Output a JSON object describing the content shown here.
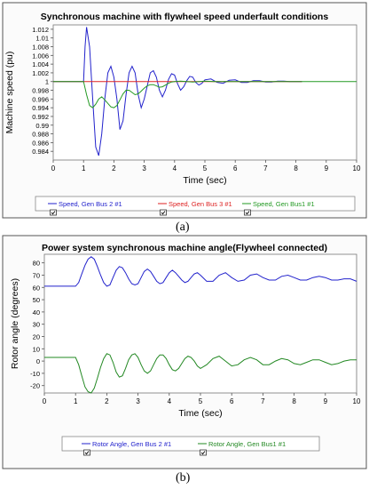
{
  "figure_labels": [
    "(a)",
    "(b)"
  ],
  "chart_data": [
    {
      "type": "line",
      "title": "Synchronous machine with flywheel speed underfault conditions",
      "xlabel": "Time (sec)",
      "ylabel": "Machine speed (pu)",
      "xlim": [
        0,
        10
      ],
      "ylim": [
        0.982,
        1.013
      ],
      "xticks": [
        0,
        1,
        2,
        3,
        4,
        5,
        6,
        7,
        8,
        9,
        10
      ],
      "yticks": [
        1.012,
        1.01,
        1.008,
        1.006,
        1.004,
        1.002,
        1,
        0.998,
        0.996,
        0.994,
        0.992,
        0.99,
        0.988,
        0.986,
        0.984
      ],
      "grid": false,
      "legend_placement": "bottom",
      "series": [
        {
          "name": "Speed, Gen Bus 2 #1",
          "color": "#2222cc",
          "x": [
            0,
            1.0,
            1.05,
            1.1,
            1.2,
            1.3,
            1.4,
            1.5,
            1.6,
            1.7,
            1.8,
            1.9,
            2.0,
            2.1,
            2.2,
            2.3,
            2.4,
            2.5,
            2.6,
            2.7,
            2.8,
            2.9,
            3.0,
            3.1,
            3.2,
            3.3,
            3.4,
            3.5,
            3.6,
            3.7,
            3.8,
            3.9,
            4.0,
            4.1,
            4.2,
            4.3,
            4.4,
            4.5,
            4.6,
            4.7,
            4.8,
            4.9,
            5.0,
            5.2,
            5.4,
            5.6,
            5.8,
            6.0,
            6.2,
            6.4,
            6.6,
            6.8,
            7.0,
            7.2,
            7.4,
            7.6,
            7.8,
            8.0,
            8.2
          ],
          "y": [
            1.0,
            1.0,
            1.008,
            1.0125,
            1.008,
            0.996,
            0.985,
            0.983,
            0.988,
            0.996,
            1.002,
            1.0035,
            1.001,
            0.996,
            0.989,
            0.991,
            0.997,
            1.002,
            1.0035,
            1.002,
            0.997,
            0.994,
            0.996,
            0.999,
            1.002,
            1.0025,
            1.001,
            0.998,
            0.9965,
            0.998,
            1.0005,
            1.0018,
            1.0015,
            0.9995,
            0.998,
            0.9988,
            1.0002,
            1.0012,
            1.001,
            0.9998,
            0.9992,
            0.9996,
            1.0004,
            1.0006,
            0.9998,
            0.9996,
            1.0003,
            1.0004,
            0.9998,
            0.9998,
            1.0002,
            1.0002,
            0.9999,
            0.9999,
            1.0001,
            1.0001,
            1.0,
            1.0,
            1.0
          ]
        },
        {
          "name": "Speed, Gen Bus 3 #1",
          "color": "#dd2222",
          "x": [
            0,
            1,
            2,
            3,
            4,
            5,
            6,
            7,
            8,
            8.2
          ],
          "y": [
            1.0,
            1.0,
            1.0,
            1.0,
            1.0,
            1.0,
            1.0,
            1.0,
            1.0,
            1.0
          ]
        },
        {
          "name": "Speed, Gen Bus1 #1",
          "color": "#229922",
          "x": [
            0,
            1.0,
            1.1,
            1.2,
            1.3,
            1.4,
            1.5,
            1.6,
            1.7,
            1.8,
            1.9,
            2.0,
            2.1,
            2.2,
            2.3,
            2.4,
            2.5,
            2.6,
            2.7,
            2.8,
            2.9,
            3.0,
            3.1,
            3.2,
            3.3,
            3.4,
            3.5,
            3.6,
            3.7,
            3.8,
            3.9,
            4.0,
            4.2,
            4.4,
            4.6,
            4.8,
            5.0,
            5.3,
            5.6,
            6.0,
            6.5,
            7.0,
            7.5,
            8.0,
            10
          ],
          "y": [
            1.0,
            1.0,
            0.997,
            0.9945,
            0.994,
            0.9948,
            0.996,
            0.9965,
            0.9958,
            0.995,
            0.9942,
            0.994,
            0.9945,
            0.9958,
            0.9972,
            0.998,
            0.998,
            0.9975,
            0.997,
            0.9972,
            0.9978,
            0.9985,
            0.999,
            0.9993,
            0.9993,
            0.999,
            0.9987,
            0.9988,
            0.9992,
            0.9996,
            0.9999,
            1.0,
            1.0001,
            1.0,
            0.9999,
            1.0,
            1.0001,
            1.0,
            1.0,
            1.0,
            1.0,
            1.0,
            1.0,
            1.0,
            1.0
          ]
        }
      ]
    },
    {
      "type": "line",
      "title": "Power system synchronous machine angle(Flywheel connected)",
      "xlabel": "Time (sec)",
      "ylabel": "Rotor angle (degrees)",
      "xlim": [
        0,
        10
      ],
      "ylim": [
        -26,
        87
      ],
      "xticks": [
        0,
        1,
        2,
        3,
        4,
        5,
        6,
        7,
        8,
        9,
        10
      ],
      "yticks": [
        80,
        70,
        60,
        50,
        40,
        30,
        20,
        10,
        0,
        -10,
        -20
      ],
      "grid": false,
      "legend_placement": "bottom",
      "series": [
        {
          "name": "Rotor Angle, Gen Bus 2 #1",
          "color": "#2222cc",
          "x": [
            0,
            1.0,
            1.1,
            1.2,
            1.3,
            1.4,
            1.5,
            1.6,
            1.7,
            1.8,
            1.9,
            2.0,
            2.1,
            2.2,
            2.3,
            2.4,
            2.5,
            2.6,
            2.7,
            2.8,
            2.9,
            3.0,
            3.1,
            3.2,
            3.3,
            3.4,
            3.5,
            3.6,
            3.7,
            3.8,
            3.9,
            4.0,
            4.1,
            4.2,
            4.3,
            4.4,
            4.5,
            4.6,
            4.7,
            4.8,
            4.9,
            5.0,
            5.2,
            5.4,
            5.6,
            5.8,
            6.0,
            6.2,
            6.4,
            6.6,
            6.8,
            7.0,
            7.2,
            7.4,
            7.6,
            7.8,
            8.0,
            8.2,
            8.4,
            8.6,
            8.8,
            9.0,
            9.2,
            9.4,
            9.6,
            9.8,
            10.0
          ],
          "y": [
            61,
            61,
            64,
            71,
            78,
            83,
            85,
            83,
            77,
            70,
            64,
            61,
            62,
            68,
            74,
            77,
            76,
            72,
            67,
            63,
            62,
            63,
            68,
            73,
            75,
            73,
            69,
            65,
            63,
            64,
            68,
            72,
            74,
            72,
            69,
            66,
            64,
            65,
            68,
            71,
            72,
            70,
            65,
            65,
            70,
            72,
            68,
            65,
            66,
            70,
            71,
            68,
            66,
            66,
            69,
            70,
            68,
            66,
            66,
            68,
            69,
            68,
            66,
            66,
            67,
            67,
            65
          ]
        },
        {
          "name": "Rotor Angle, Gen Bus1 #1",
          "color": "#228822",
          "x": [
            0,
            1.0,
            1.1,
            1.2,
            1.3,
            1.4,
            1.5,
            1.6,
            1.7,
            1.8,
            1.9,
            2.0,
            2.1,
            2.2,
            2.3,
            2.4,
            2.5,
            2.6,
            2.7,
            2.8,
            2.9,
            3.0,
            3.1,
            3.2,
            3.3,
            3.4,
            3.5,
            3.6,
            3.7,
            3.8,
            3.9,
            4.0,
            4.1,
            4.2,
            4.3,
            4.4,
            4.5,
            4.6,
            4.7,
            4.8,
            4.9,
            5.0,
            5.2,
            5.4,
            5.6,
            5.8,
            6.0,
            6.2,
            6.4,
            6.6,
            6.8,
            7.0,
            7.2,
            7.4,
            7.6,
            7.8,
            8.0,
            8.2,
            8.4,
            8.6,
            8.8,
            9.0,
            9.2,
            9.4,
            9.6,
            9.8,
            10.0
          ],
          "y": [
            3,
            3,
            -3,
            -12,
            -21,
            -25,
            -26,
            -22,
            -14,
            -5,
            2,
            6,
            5,
            -1,
            -9,
            -13,
            -12,
            -6,
            1,
            5,
            6,
            3,
            -3,
            -8,
            -10,
            -8,
            -3,
            2,
            5,
            5,
            2,
            -3,
            -7,
            -8,
            -6,
            -2,
            2,
            4,
            3,
            0,
            -4,
            -6,
            -3,
            2,
            4,
            0,
            -4,
            -3,
            1,
            3,
            1,
            -3,
            -3,
            0,
            2,
            1,
            -2,
            -3,
            -1,
            1,
            1,
            -1,
            -3,
            -2,
            0,
            1,
            1
          ]
        }
      ]
    }
  ]
}
